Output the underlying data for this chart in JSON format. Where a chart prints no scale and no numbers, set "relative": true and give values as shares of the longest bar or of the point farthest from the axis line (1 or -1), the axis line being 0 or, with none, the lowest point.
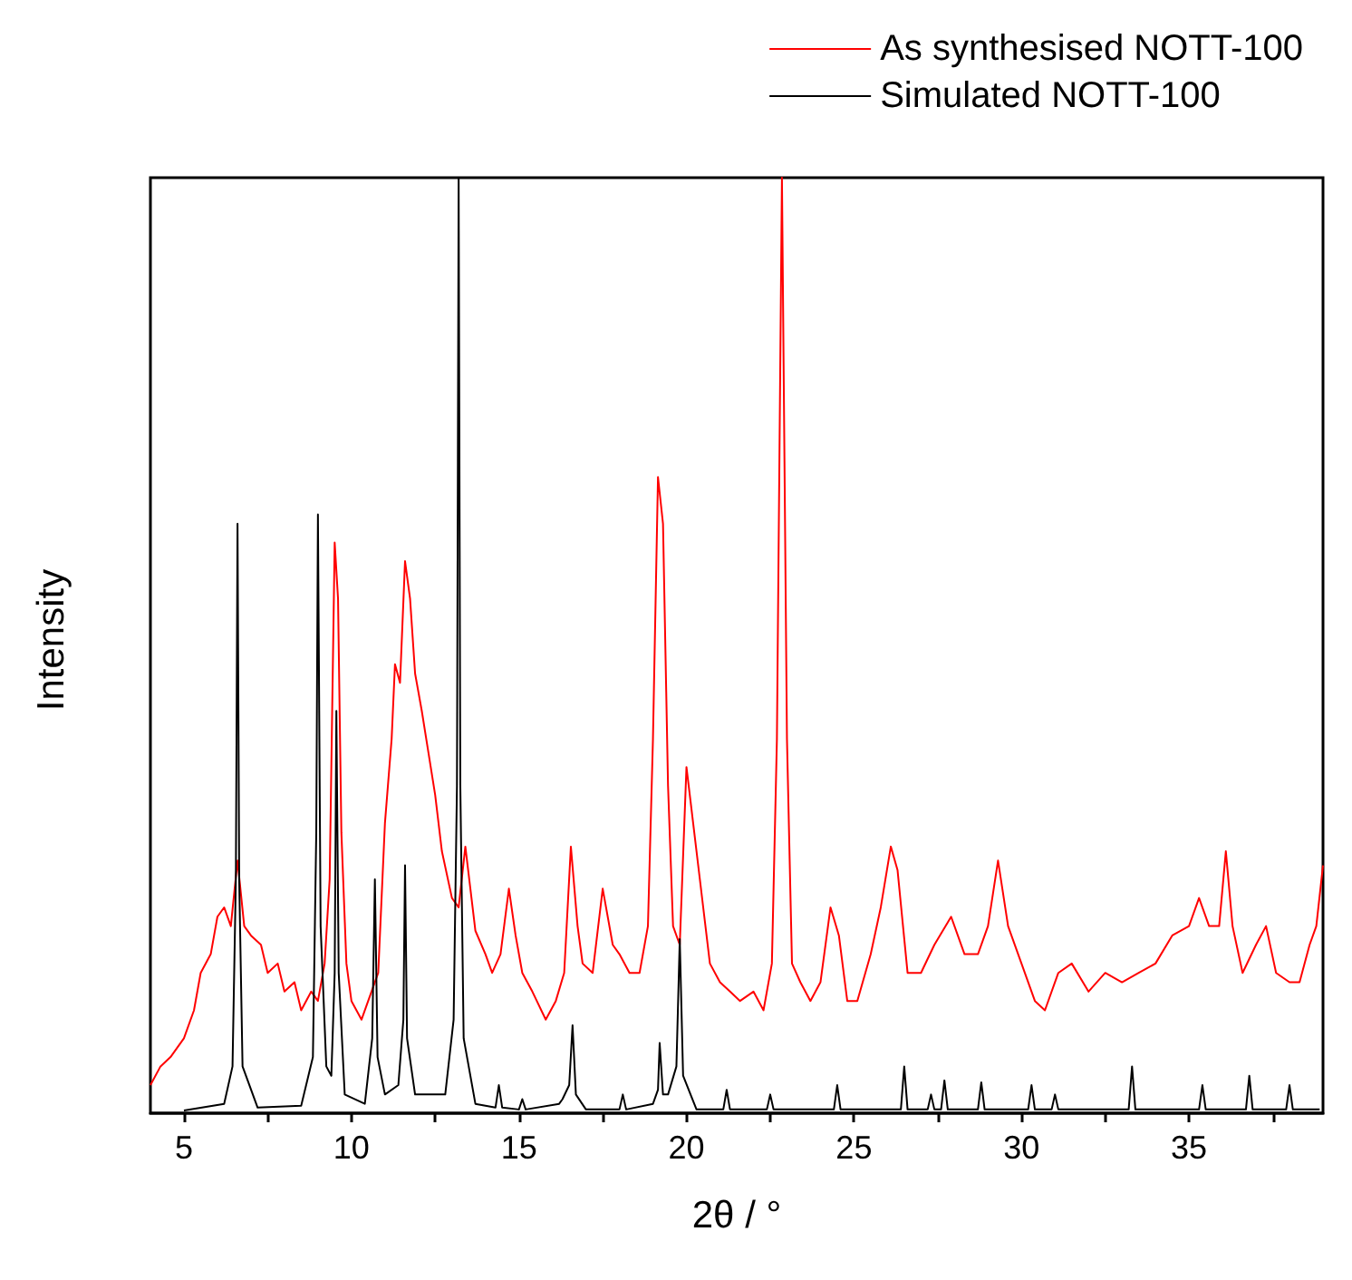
{
  "chart_data": {
    "type": "line",
    "relative": true,
    "xlabel": "2θ / °",
    "ylabel": "Intensity",
    "xlim": [
      4,
      39
    ],
    "xticks": [
      5,
      {
        "value": 7.5,
        "label": null
      },
      10,
      {
        "value": 12.5,
        "label": null
      },
      15,
      {
        "value": 17.5,
        "label": null
      },
      20,
      {
        "value": 22.5,
        "label": null
      },
      25,
      {
        "value": 27.5,
        "label": null
      },
      30,
      {
        "value": 32.5,
        "label": null
      },
      35,
      {
        "value": 37.5,
        "label": null
      }
    ],
    "legend": "top right",
    "grid": false,
    "marker": "none",
    "line_style": "solid",
    "series": [
      {
        "name": "As synthesised NOTT-100",
        "color": "#ff0000",
        "x": [
          4.0,
          4.3,
          4.6,
          5.0,
          5.3,
          5.5,
          5.8,
          6.0,
          6.2,
          6.4,
          6.6,
          6.8,
          7.0,
          7.3,
          7.5,
          7.8,
          8.0,
          8.3,
          8.5,
          8.8,
          9.0,
          9.2,
          9.35,
          9.5,
          9.6,
          9.7,
          9.85,
          10.0,
          10.3,
          10.5,
          10.8,
          11.0,
          11.2,
          11.3,
          11.45,
          11.6,
          11.75,
          11.9,
          12.1,
          12.3,
          12.5,
          12.7,
          13.0,
          13.2,
          13.4,
          13.55,
          13.7,
          14.0,
          14.2,
          14.45,
          14.7,
          14.9,
          15.1,
          15.4,
          15.8,
          16.1,
          16.35,
          16.55,
          16.75,
          16.9,
          17.2,
          17.5,
          17.8,
          18.0,
          18.3,
          18.6,
          18.85,
          19.0,
          19.15,
          19.3,
          19.45,
          19.6,
          19.8,
          20.0,
          20.2,
          20.4,
          20.7,
          21.0,
          21.3,
          21.6,
          22.0,
          22.3,
          22.55,
          22.7,
          22.85,
          23.0,
          23.15,
          23.4,
          23.7,
          24.0,
          24.3,
          24.55,
          24.8,
          25.1,
          25.5,
          25.8,
          26.1,
          26.3,
          26.6,
          27.0,
          27.4,
          27.9,
          28.3,
          28.7,
          29.0,
          29.3,
          29.6,
          30.0,
          30.4,
          30.7,
          31.1,
          31.5,
          32.0,
          32.5,
          33.0,
          33.5,
          34.0,
          34.5,
          35.0,
          35.3,
          35.6,
          35.9,
          36.1,
          36.3,
          36.6,
          37.0,
          37.3,
          37.6,
          38.0,
          38.3,
          38.6,
          38.8,
          39.0
        ],
        "values": [
          0.03,
          0.05,
          0.06,
          0.08,
          0.11,
          0.15,
          0.17,
          0.21,
          0.22,
          0.2,
          0.27,
          0.2,
          0.19,
          0.18,
          0.15,
          0.16,
          0.13,
          0.14,
          0.11,
          0.13,
          0.12,
          0.16,
          0.25,
          0.61,
          0.55,
          0.3,
          0.16,
          0.12,
          0.1,
          0.12,
          0.15,
          0.31,
          0.4,
          0.48,
          0.46,
          0.59,
          0.55,
          0.47,
          0.43,
          0.385,
          0.34,
          0.28,
          0.23,
          0.22,
          0.285,
          0.24,
          0.195,
          0.17,
          0.15,
          0.17,
          0.24,
          0.19,
          0.15,
          0.13,
          0.1,
          0.12,
          0.15,
          0.285,
          0.2,
          0.16,
          0.15,
          0.24,
          0.18,
          0.17,
          0.15,
          0.15,
          0.2,
          0.4,
          0.68,
          0.63,
          0.35,
          0.2,
          0.18,
          0.37,
          0.31,
          0.25,
          0.16,
          0.14,
          0.13,
          0.12,
          0.13,
          0.11,
          0.16,
          0.4,
          1.0,
          0.4,
          0.16,
          0.14,
          0.12,
          0.14,
          0.22,
          0.19,
          0.12,
          0.12,
          0.17,
          0.22,
          0.285,
          0.26,
          0.15,
          0.15,
          0.18,
          0.21,
          0.17,
          0.17,
          0.2,
          0.27,
          0.2,
          0.16,
          0.12,
          0.11,
          0.15,
          0.16,
          0.13,
          0.15,
          0.14,
          0.15,
          0.16,
          0.19,
          0.2,
          0.23,
          0.2,
          0.2,
          0.28,
          0.2,
          0.15,
          0.18,
          0.2,
          0.15,
          0.14,
          0.14,
          0.18,
          0.2,
          0.265
        ]
      },
      {
        "name": "Simulated NOTT-100",
        "color": "#000000",
        "x": [
          5,
          6.2,
          6.45,
          6.55,
          6.6,
          6.65,
          6.75,
          7.2,
          8.5,
          8.85,
          8.95,
          9.0,
          9.08,
          9.25,
          9.4,
          9.5,
          9.55,
          9.62,
          9.8,
          10.4,
          10.62,
          10.7,
          10.78,
          11.0,
          11.4,
          11.55,
          11.6,
          11.66,
          11.9,
          12.8,
          13.05,
          13.15,
          13.2,
          13.25,
          13.35,
          13.7,
          14.3,
          14.4,
          14.5,
          15.0,
          15.1,
          15.2,
          16.2,
          16.3,
          16.5,
          16.6,
          16.7,
          17.0,
          18.0,
          18.1,
          18.2,
          19.0,
          19.15,
          19.2,
          19.3,
          19.45,
          19.7,
          19.8,
          19.9,
          20.3,
          21.1,
          21.2,
          21.3,
          22.4,
          22.5,
          22.6,
          24.4,
          24.5,
          24.6,
          26.4,
          26.5,
          26.6,
          27.2,
          27.3,
          27.4,
          27.6,
          27.7,
          27.8,
          28.7,
          28.8,
          28.9,
          30.2,
          30.3,
          30.4,
          30.9,
          31.0,
          31.1,
          33.2,
          33.3,
          33.4,
          35.3,
          35.4,
          35.5,
          36.7,
          36.8,
          36.9,
          37.9,
          38.0,
          38.1,
          38.9
        ],
        "values": [
          0.003,
          0.01,
          0.05,
          0.25,
          0.63,
          0.25,
          0.05,
          0.006,
          0.008,
          0.06,
          0.3,
          0.64,
          0.2,
          0.05,
          0.04,
          0.15,
          0.43,
          0.15,
          0.02,
          0.01,
          0.08,
          0.25,
          0.06,
          0.02,
          0.03,
          0.1,
          0.265,
          0.08,
          0.02,
          0.02,
          0.1,
          0.35,
          1.0,
          0.35,
          0.08,
          0.01,
          0.006,
          0.03,
          0.006,
          0.004,
          0.015,
          0.004,
          0.01,
          0.015,
          0.03,
          0.094,
          0.02,
          0.004,
          0.004,
          0.02,
          0.004,
          0.01,
          0.025,
          0.075,
          0.02,
          0.02,
          0.05,
          0.186,
          0.04,
          0.004,
          0.004,
          0.025,
          0.004,
          0.004,
          0.02,
          0.004,
          0.004,
          0.03,
          0.004,
          0.004,
          0.05,
          0.004,
          0.004,
          0.02,
          0.004,
          0.004,
          0.035,
          0.004,
          0.004,
          0.033,
          0.004,
          0.004,
          0.03,
          0.004,
          0.004,
          0.02,
          0.004,
          0.004,
          0.05,
          0.004,
          0.004,
          0.03,
          0.004,
          0.004,
          0.04,
          0.004,
          0.004,
          0.03,
          0.004,
          0.004
        ]
      }
    ]
  }
}
